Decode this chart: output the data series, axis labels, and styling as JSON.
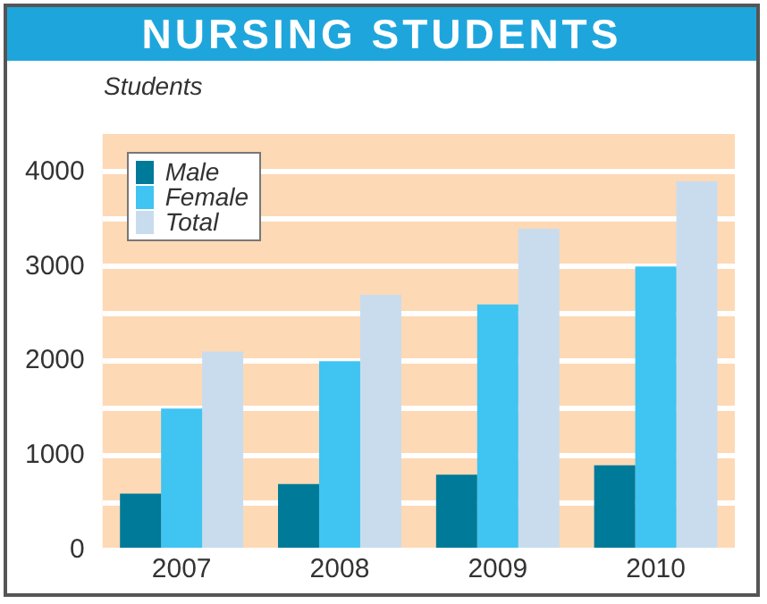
{
  "chart_data": {
    "type": "bar",
    "title": "NURSING STUDENTS",
    "ylabel": "Students",
    "categories": [
      "2007",
      "2008",
      "2009",
      "2010"
    ],
    "series": [
      {
        "name": "Male",
        "color": "#007a99",
        "values": [
          600,
          700,
          800,
          900
        ]
      },
      {
        "name": "Female",
        "color": "#40c4f2",
        "values": [
          1500,
          2000,
          2600,
          3000
        ]
      },
      {
        "name": "Total",
        "color": "#c8dcee",
        "values": [
          2100,
          2700,
          3400,
          3900
        ]
      }
    ],
    "ylim": [
      0,
      4400
    ],
    "yticks": [
      0,
      {
        "value": 500,
        "label": null
      },
      1000,
      {
        "value": 1500,
        "label": null
      },
      2000,
      {
        "value": 2500,
        "label": null
      },
      3000,
      {
        "value": 3500,
        "label": null
      },
      4000
    ],
    "grid": "y",
    "legend": "top left"
  }
}
